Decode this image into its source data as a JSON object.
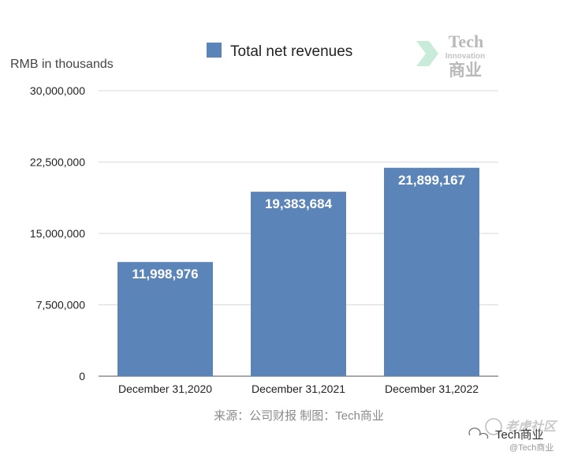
{
  "chart_data": {
    "type": "bar",
    "categories": [
      "December 31,2020",
      "December 31,2021",
      "December 31,2022"
    ],
    "series": [
      {
        "name": "Total net revenues",
        "values": [
          11998976,
          19383684,
          21899167
        ],
        "value_labels": [
          "11,998,976",
          "19,383,684",
          "21,899,167"
        ],
        "color": "#5b84b8"
      }
    ],
    "ylabel": "RMB in thousands",
    "xlabel": "",
    "ylim": [
      0,
      30000000
    ],
    "yticks": [
      0,
      7500000,
      15000000,
      22500000,
      30000000
    ],
    "ytick_labels": [
      "0",
      "7,500,000",
      "15,000,000",
      "22,500,000",
      "30,000,000"
    ],
    "grid": true,
    "legend_position": "top-center"
  },
  "source_note": "来源：公司财报 制图：Tech商业",
  "logo": {
    "word": "Tech",
    "sub": "Innovation",
    "cn": "商业"
  },
  "watermark": {
    "line1": "老虎社区",
    "line2": "Tech商业",
    "line3": "@Tech商业"
  },
  "colors": {
    "bar": "#5b84b8",
    "grid": "#d9d9d9",
    "axis": "#555555",
    "text": "#222222",
    "logo": "#b9b9b9",
    "logo_accent": "#c8ecd9"
  }
}
